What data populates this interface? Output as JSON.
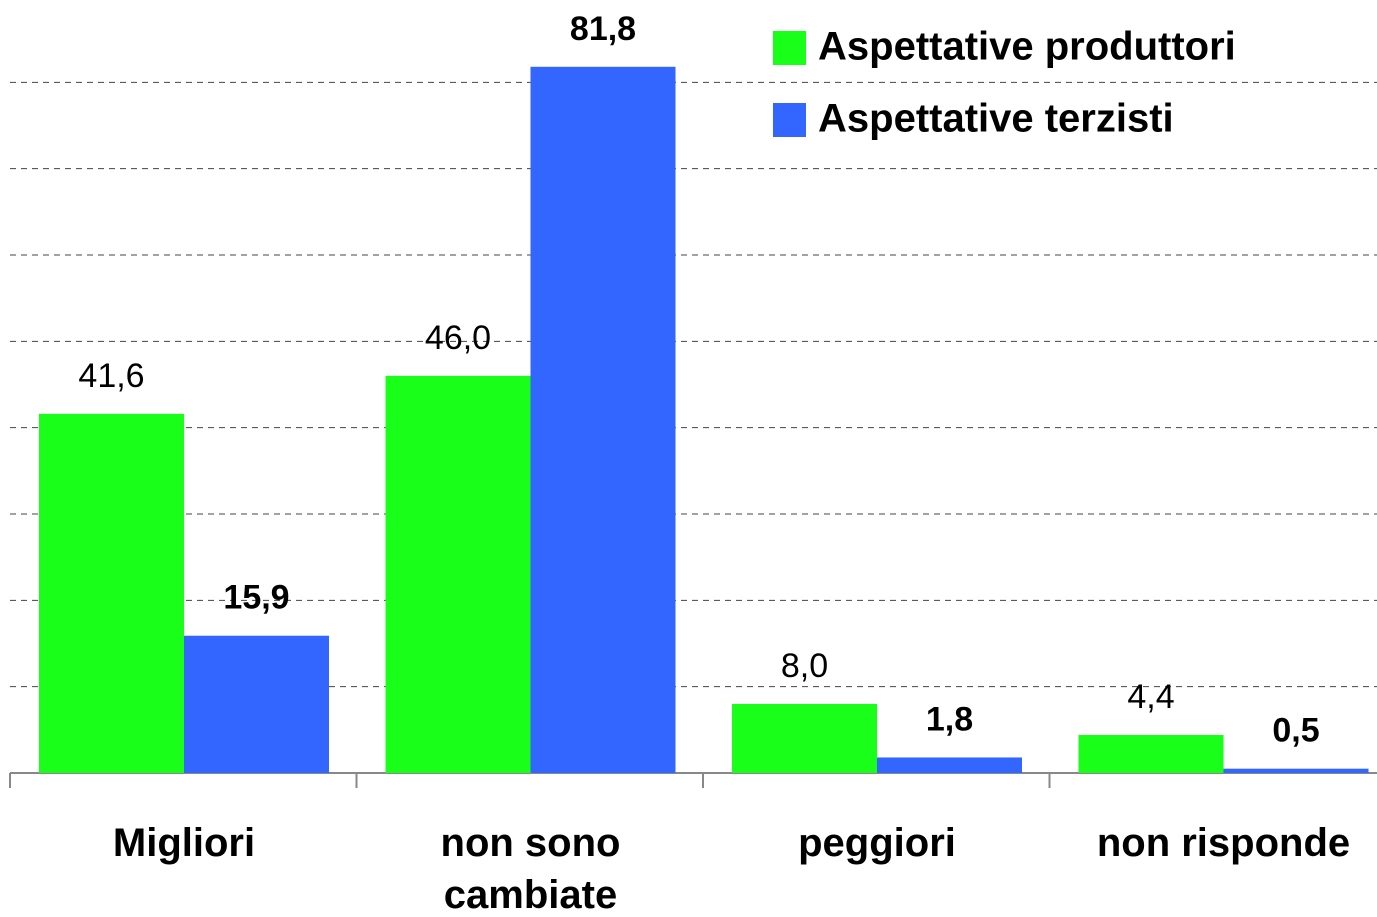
{
  "chart_data": {
    "type": "bar",
    "categories": [
      "Migliori",
      "non sono cambiate",
      "peggiori",
      "non risponde"
    ],
    "series": [
      {
        "name": "Aspettative produttori",
        "color": "#1aff1a",
        "values": [
          41.6,
          46.0,
          8.0,
          4.4
        ],
        "value_labels": [
          "41,6",
          "46,0",
          "8,0",
          "4,4"
        ]
      },
      {
        "name": "Aspettative terzisti",
        "color": "#3366ff",
        "values": [
          15.9,
          81.8,
          1.8,
          0.5
        ],
        "value_labels": [
          "15,9",
          "81,8",
          "1,8",
          "0,5"
        ]
      }
    ],
    "ylim": [
      0,
      90
    ],
    "yticks": [
      0,
      10,
      20,
      30,
      40,
      50,
      60,
      70,
      80
    ],
    "grid": true,
    "legend": "top-right"
  }
}
